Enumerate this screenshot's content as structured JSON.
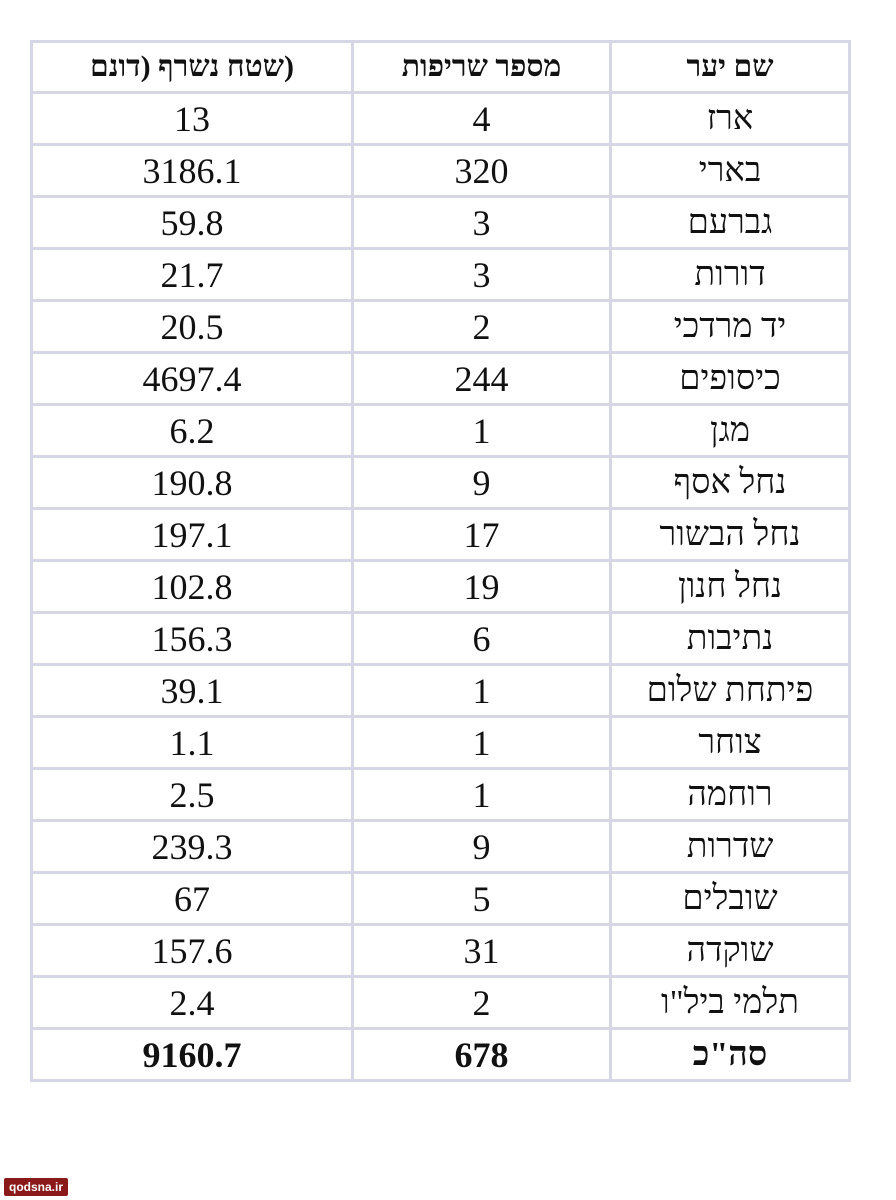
{
  "table": {
    "headers": {
      "area": "(שטח נשרף (דונם",
      "count": "מספר שריפות",
      "name": "שם יער"
    },
    "rows": [
      {
        "area": "13",
        "count": "4",
        "name": "ארז"
      },
      {
        "area": "3186.1",
        "count": "320",
        "name": "בארי"
      },
      {
        "area": "59.8",
        "count": "3",
        "name": "גברעם"
      },
      {
        "area": "21.7",
        "count": "3",
        "name": "דורות"
      },
      {
        "area": "20.5",
        "count": "2",
        "name": "יד מרדכי"
      },
      {
        "area": "4697.4",
        "count": "244",
        "name": "כיסופים"
      },
      {
        "area": "6.2",
        "count": "1",
        "name": "מגן"
      },
      {
        "area": "190.8",
        "count": "9",
        "name": "נחל אסף"
      },
      {
        "area": "197.1",
        "count": "17",
        "name": "נחל הבשור"
      },
      {
        "area": "102.8",
        "count": "19",
        "name": "נחל חנון"
      },
      {
        "area": "156.3",
        "count": "6",
        "name": "נתיבות"
      },
      {
        "area": "39.1",
        "count": "1",
        "name": "פיתחת שלום"
      },
      {
        "area": "1.1",
        "count": "1",
        "name": "צוחר"
      },
      {
        "area": "2.5",
        "count": "1",
        "name": "רוחמה"
      },
      {
        "area": "239.3",
        "count": "9",
        "name": "שדרות"
      },
      {
        "area": "67",
        "count": "5",
        "name": "שובלים"
      },
      {
        "area": "157.6",
        "count": "31",
        "name": "שוקדה"
      },
      {
        "area": "2.4",
        "count": "2",
        "name": "תלמי ביל\"ו"
      }
    ],
    "total": {
      "area": "9160.7",
      "count": "678",
      "name": "סה\"כ"
    }
  },
  "watermark": "qodsna.ir"
}
